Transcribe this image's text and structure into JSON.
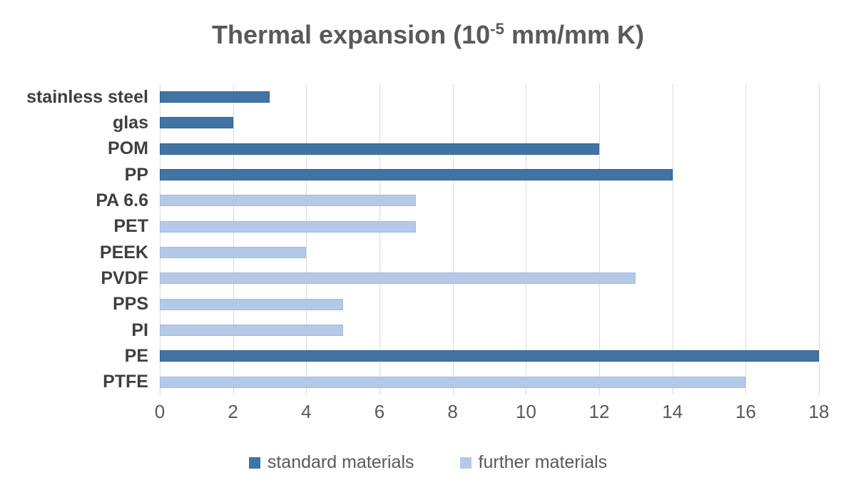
{
  "chart_data": {
    "type": "bar",
    "orientation": "horizontal",
    "title": "Thermal expansion (10^-5 mm/mm K)",
    "title_parts": {
      "main": "Thermal expansion (10",
      "sup": "-5",
      "rest": " mm/mm K)"
    },
    "categories": [
      "stainless steel",
      "glas",
      "POM",
      "PP",
      "PA 6.6",
      "PET",
      "PEEK",
      "PVDF",
      "PPS",
      "PI",
      "PE",
      "PTFE"
    ],
    "series": [
      {
        "name": "standard materials",
        "key": "standard",
        "color": "#4173a4",
        "values": [
          3,
          2,
          12,
          14,
          null,
          null,
          null,
          null,
          null,
          null,
          18,
          null
        ]
      },
      {
        "name": "further materials",
        "key": "further",
        "color": "#b4c9e7",
        "values": [
          null,
          null,
          null,
          null,
          7,
          7,
          4,
          13,
          5,
          5,
          null,
          16
        ]
      }
    ],
    "xlabel": "",
    "ylabel": "",
    "xlim": [
      0,
      18
    ],
    "x_ticks": [
      0,
      2,
      4,
      6,
      8,
      10,
      12,
      14,
      16,
      18
    ],
    "grid": "vertical",
    "gridline_color": "#d9d9d9",
    "legend_position": "bottom"
  }
}
